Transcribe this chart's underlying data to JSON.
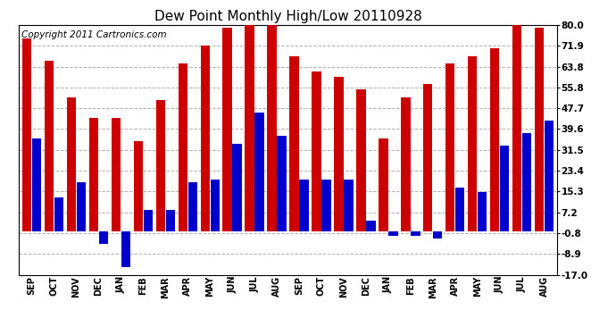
{
  "title": "Dew Point Monthly High/Low 20110928",
  "copyright": "Copyright 2011 Cartronics.com",
  "months": [
    "SEP",
    "OCT",
    "NOV",
    "DEC",
    "JAN",
    "FEB",
    "MAR",
    "APR",
    "MAY",
    "JUN",
    "JUL",
    "AUG",
    "SEP",
    "OCT",
    "NOV",
    "DEC",
    "JAN",
    "FEB",
    "MAR",
    "APR",
    "MAY",
    "JUN",
    "JUL",
    "AUG"
  ],
  "highs": [
    75,
    66,
    52,
    44,
    44,
    35,
    51,
    65,
    72,
    79,
    80,
    80,
    68,
    62,
    60,
    55,
    36,
    52,
    57,
    65,
    68,
    71,
    80,
    79
  ],
  "lows": [
    36,
    13,
    19,
    -5,
    -14,
    8,
    8,
    19,
    20,
    34,
    46,
    37,
    20,
    20,
    20,
    4,
    -2,
    -2,
    -3,
    17,
    15,
    33,
    38,
    43
  ],
  "yticks": [
    80.0,
    71.9,
    63.8,
    55.8,
    47.7,
    39.6,
    31.5,
    23.4,
    15.3,
    7.2,
    -0.8,
    -8.9,
    -17.0
  ],
  "ymin": -17.0,
  "ymax": 80.0,
  "bar_color_high": "#cc0000",
  "bar_color_low": "#0000cc",
  "background_color": "#ffffff",
  "grid_color": "#b0b0b0",
  "title_fontsize": 11,
  "copyright_fontsize": 7.5
}
